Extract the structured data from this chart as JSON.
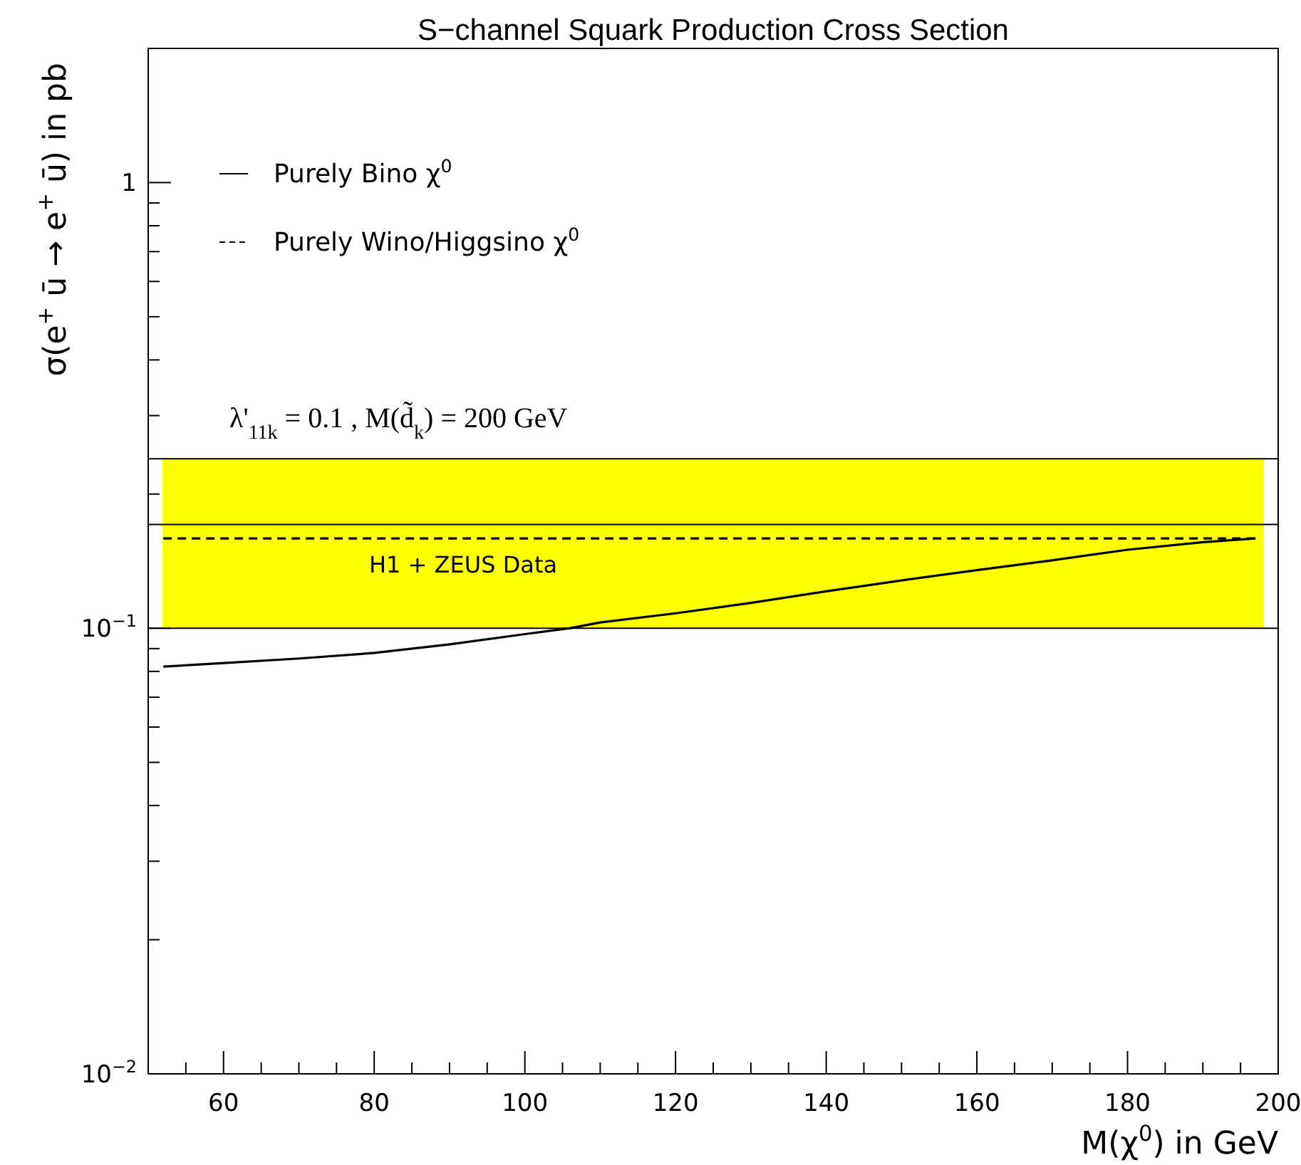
{
  "chart_data": {
    "type": "line",
    "title": "S−channel Squark Production Cross Section",
    "xlabel": "M(χ$^{0}$) in GeV",
    "ylabel": "σ(e$^{+}$ ū → e$^{+}$ ū) in pb",
    "log": "y",
    "grid": false,
    "legend": "top left",
    "marker": "none",
    "xlim": [
      50,
      200
    ],
    "ylim": [
      0.01,
      2
    ],
    "xticks": [
      {
        "value": 55,
        "label": null
      },
      60,
      {
        "value": 65,
        "label": null
      },
      {
        "value": 70,
        "label": null
      },
      {
        "value": 75,
        "label": null
      },
      80,
      {
        "value": 85,
        "label": null
      },
      {
        "value": 90,
        "label": null
      },
      {
        "value": 95,
        "label": null
      },
      100,
      {
        "value": 105,
        "label": null
      },
      {
        "value": 110,
        "label": null
      },
      {
        "value": 115,
        "label": null
      },
      120,
      {
        "value": 125,
        "label": null
      },
      {
        "value": 130,
        "label": null
      },
      {
        "value": 135,
        "label": null
      },
      140,
      {
        "value": 145,
        "label": null
      },
      {
        "value": 150,
        "label": null
      },
      {
        "value": 155,
        "label": null
      },
      160,
      {
        "value": 165,
        "label": null
      },
      {
        "value": 170,
        "label": null
      },
      {
        "value": 175,
        "label": null
      },
      180,
      {
        "value": 185,
        "label": null
      },
      {
        "value": 190,
        "label": null
      },
      {
        "value": 195,
        "label": null
      },
      200
    ],
    "yticks": [
      {
        "value": 0.01,
        "label": "10$^{−2}$"
      },
      {
        "value": 0.02,
        "label": null
      },
      {
        "value": 0.03,
        "label": null
      },
      {
        "value": 0.04,
        "label": null
      },
      {
        "value": 0.05,
        "label": null
      },
      {
        "value": 0.06,
        "label": null
      },
      {
        "value": 0.07,
        "label": null
      },
      {
        "value": 0.08,
        "label": null
      },
      {
        "value": 0.09,
        "label": null
      },
      {
        "value": 0.1,
        "label": "10$^{−1}$"
      },
      {
        "value": 0.2,
        "label": null
      },
      {
        "value": 0.3,
        "label": null
      },
      {
        "value": 0.4,
        "label": null
      },
      {
        "value": 0.5,
        "label": null
      },
      {
        "value": 0.6,
        "label": null
      },
      {
        "value": 0.7,
        "label": null
      },
      {
        "value": 0.8,
        "label": null
      },
      {
        "value": 0.9,
        "label": null
      },
      {
        "value": 1,
        "label": "1"
      },
      {
        "value": 2,
        "label": null
      }
    ],
    "bands": [
      {
        "axis": "y",
        "from": 0.1,
        "to": 0.24,
        "label": "H1 + ZEUS Data",
        "color": "#ffff00"
      }
    ],
    "ref_lines": [
      {
        "axis": "y",
        "value": 0.24,
        "label": null
      },
      {
        "axis": "y",
        "value": 0.171,
        "label": null
      },
      {
        "axis": "y",
        "value": 0.1,
        "label": null
      }
    ],
    "annotations": [
      "λ'$_{11k}$ = 0.1 , M(d̃$_{k}$) = 200 GeV"
    ],
    "series": [
      {
        "name": "Purely Bino χ$^{0}$",
        "color": "#000000",
        "line_style": "solid",
        "x": [
          52,
          60,
          70,
          80,
          90,
          100,
          106,
          110,
          120,
          130,
          140,
          150,
          160,
          170,
          180,
          190,
          197
        ],
        "values": [
          0.082,
          0.0835,
          0.0855,
          0.088,
          0.092,
          0.097,
          0.1,
          0.103,
          0.108,
          0.114,
          0.121,
          0.128,
          0.135,
          0.142,
          0.15,
          0.156,
          0.159
        ]
      },
      {
        "name": "Purely Wino/Higgsino χ$^{0}$",
        "color": "#000000",
        "line_style": "dashed",
        "x": [
          52,
          197
        ],
        "values": [
          0.159,
          0.159
        ]
      }
    ]
  }
}
